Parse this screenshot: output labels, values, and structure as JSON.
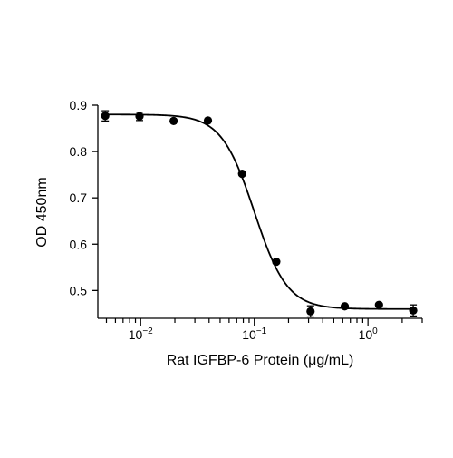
{
  "chart_data": {
    "type": "scatter",
    "title": "",
    "xlabel": "Rat IGFBP-6 Protein (μg/mL)",
    "ylabel": "OD 450nm",
    "x_scale": "log10",
    "xlim": [
      0.0042,
      3.0
    ],
    "ylim": [
      0.44,
      0.9
    ],
    "y_ticks": [
      0.5,
      0.6,
      0.7,
      0.8,
      0.9
    ],
    "y_tick_labels": [
      "0.5",
      "0.6",
      "0.7",
      "0.8",
      "0.9"
    ],
    "x_major_ticks": [
      0.01,
      0.1,
      1
    ],
    "x_tick_labels": [
      {
        "base": "10",
        "exp": "−2"
      },
      {
        "base": "10",
        "exp": "−1"
      },
      {
        "base": "10",
        "exp": "0"
      }
    ],
    "grid": false,
    "legend": "none",
    "series": [
      {
        "points": [
          {
            "x": 0.00488,
            "y": 0.877,
            "err": 0.011
          },
          {
            "x": 0.00977,
            "y": 0.876,
            "err": 0.009
          },
          {
            "x": 0.0195,
            "y": 0.866,
            "err": 0.0
          },
          {
            "x": 0.0391,
            "y": 0.867,
            "err": 0.0
          },
          {
            "x": 0.0781,
            "y": 0.752,
            "err": 0.0
          },
          {
            "x": 0.156,
            "y": 0.562,
            "err": 0.0
          },
          {
            "x": 0.3125,
            "y": 0.455,
            "err": 0.012
          },
          {
            "x": 0.625,
            "y": 0.466,
            "err": 0.0
          },
          {
            "x": 1.25,
            "y": 0.469,
            "err": 0.0
          },
          {
            "x": 2.5,
            "y": 0.457,
            "err": 0.012
          }
        ],
        "fit": {
          "model": "4PL",
          "top": 0.88,
          "bottom": 0.46,
          "ec50": 0.1,
          "hill": 3.0
        }
      }
    ],
    "colors": {
      "marker": "#000000",
      "curve": "#000000",
      "axis": "#000000"
    }
  }
}
